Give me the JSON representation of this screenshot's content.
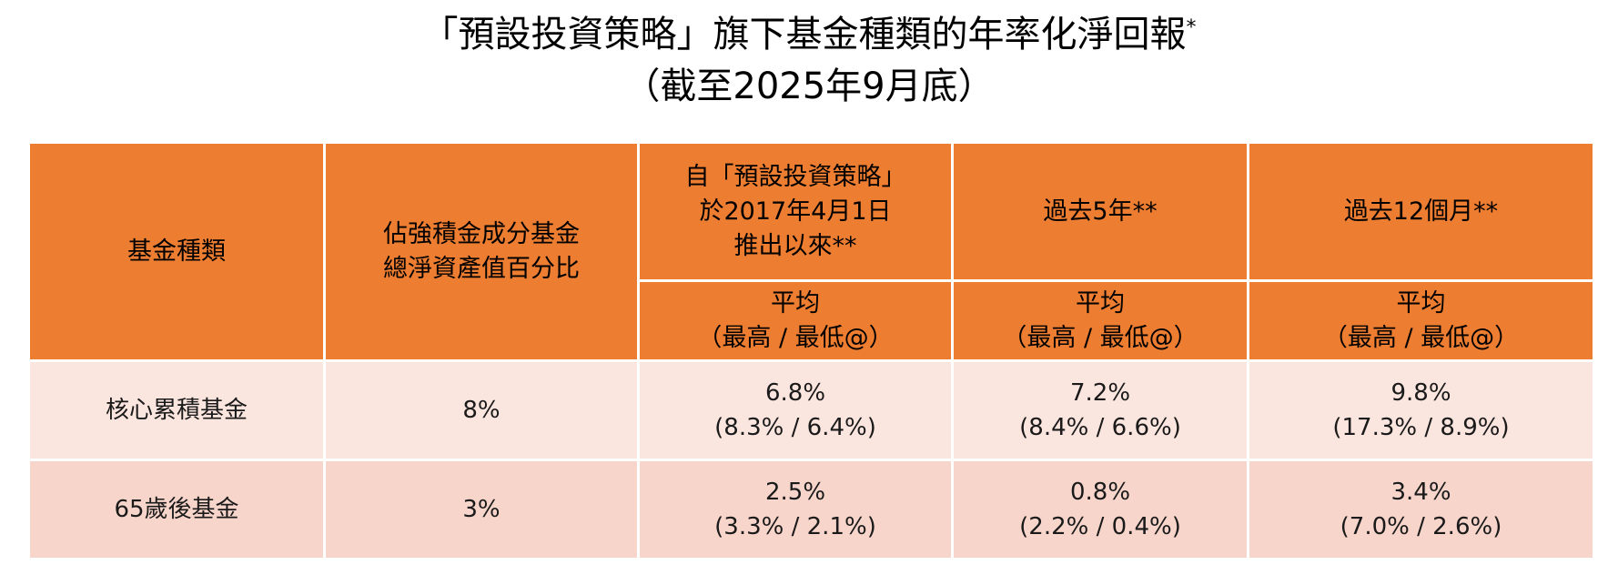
{
  "title": {
    "line1": "「預設投資策略」旗下基金種類的年率化淨回報",
    "line1_mark": "*",
    "line2": "（截至2025年9月底）"
  },
  "header": {
    "fund_type": "基金種類",
    "pct_line1": "佔強積金成分基金",
    "pct_line2": "總淨資產值百分比",
    "since_line1": "自「預設投資策略」",
    "since_line2": "於2017年4月1日",
    "since_line3": "推出以來**",
    "past5": "過去5年**",
    "past12": "過去12個月**",
    "sub_avg": "平均",
    "sub_range": "（最高 / 最低@）"
  },
  "rows": [
    {
      "fund": "核心累積基金",
      "pct": "8%",
      "since_avg": "6.8%",
      "since_range": "(8.3% / 6.4%)",
      "y5_avg": "7.2%",
      "y5_range": "(8.4% / 6.6%)",
      "m12_avg": "9.8%",
      "m12_range": "(17.3% / 8.9%)"
    },
    {
      "fund": "65歲後基金",
      "pct": "3%",
      "since_avg": "2.5%",
      "since_range": "(3.3% / 2.1%)",
      "y5_avg": "0.8%",
      "y5_range": "(2.2% / 0.4%)",
      "m12_avg": "3.4%",
      "m12_range": "(7.0% / 2.6%)"
    }
  ],
  "colors": {
    "header_bg": "#ED7D31",
    "row1_bg": "#FBE5DF",
    "row2_bg": "#F7D5CB"
  }
}
